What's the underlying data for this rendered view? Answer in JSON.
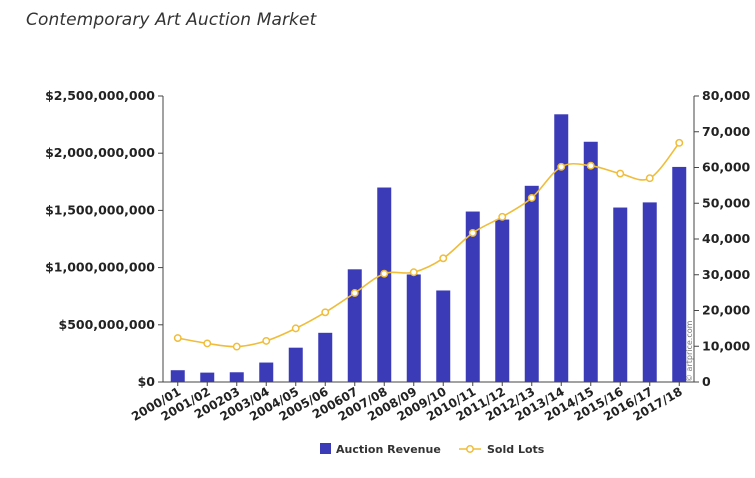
{
  "title": "Contemporary Art Auction Market",
  "credit": "© artprice.com",
  "colors": {
    "revenue": "#3b3bb8",
    "lots": "#f0bd3a",
    "axis": "#444444"
  },
  "chart_data": {
    "type": "bar",
    "title": "Contemporary Art Auction Market",
    "categories": [
      "2000/01",
      "2001/02",
      "200203",
      "2003/04",
      "2004/05",
      "2005/06",
      "200607",
      "2007/08",
      "2008/09",
      "2009/10",
      "2010/11",
      "2011/12",
      "2012/13",
      "2013/14",
      "2014/15",
      "2015/16",
      "2016/17",
      "2017/18"
    ],
    "series": [
      {
        "name": "Auction Revenue",
        "type": "bar",
        "axis": "left",
        "values": [
          103000000,
          82000000,
          85000000,
          170000000,
          300000000,
          430000000,
          985000000,
          1700000000,
          940000000,
          800000000,
          1490000000,
          1420000000,
          1715000000,
          2340000000,
          2100000000,
          1525000000,
          1570000000,
          1880000000
        ]
      },
      {
        "name": "Sold Lots",
        "type": "line",
        "axis": "right",
        "values": [
          12300,
          10800,
          9900,
          11500,
          15000,
          19500,
          24900,
          30300,
          30700,
          34600,
          41700,
          46200,
          51500,
          60200,
          60500,
          58300,
          57000,
          66900
        ]
      }
    ],
    "y_left": {
      "ylim": [
        0,
        2500000000
      ],
      "ticks": [
        0,
        500000000,
        1000000000,
        1500000000,
        2000000000,
        2500000000
      ],
      "tick_labels": [
        "$0",
        "$500,000,000",
        "$1,000,000,000",
        "$1,500,000,000",
        "$2,000,000,000",
        "$2,500,000,000"
      ]
    },
    "y_right": {
      "ylim": [
        0,
        80000
      ],
      "ticks": [
        0,
        10000,
        20000,
        30000,
        40000,
        50000,
        60000,
        70000,
        80000
      ],
      "tick_labels": [
        "0",
        "10,000",
        "20,000",
        "30,000",
        "40,000",
        "50,000",
        "60,000",
        "70,000",
        "80,000"
      ]
    },
    "grid": false,
    "legend": "bottom-center"
  }
}
